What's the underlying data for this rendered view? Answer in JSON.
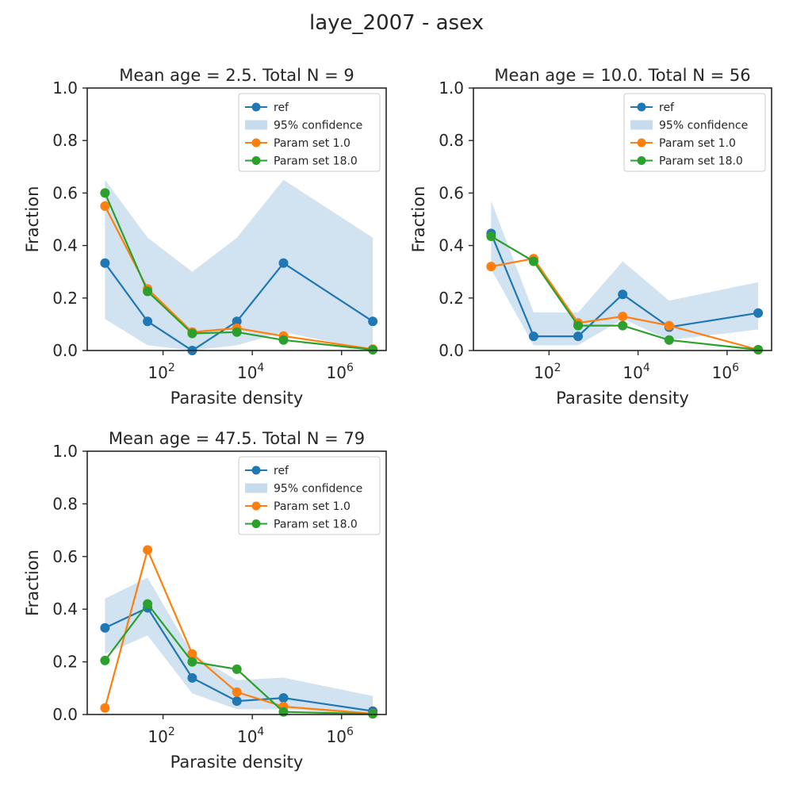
{
  "figure_title": "laye_2007 - asex",
  "colors": {
    "ref": "#1f77b4",
    "confidence": "#c6dbec",
    "param1": "#ff7f0e",
    "param18": "#2ca02c",
    "axes": "#262626"
  },
  "chart_data": [
    {
      "type": "line",
      "title": "Mean age = 2.5.  Total N = 9",
      "xlabel": "Parasite density",
      "ylabel": "Fraction",
      "xscale": "log",
      "xlim": [
        2,
        10000000
      ],
      "ylim": [
        0,
        1
      ],
      "xticks": [
        100,
        10000,
        1000000
      ],
      "xtick_labels": [
        [
          "10",
          "2"
        ],
        [
          "10",
          "4"
        ],
        [
          "10",
          "6"
        ]
      ],
      "yticks": [
        0.0,
        0.2,
        0.4,
        0.6,
        0.8,
        1.0
      ],
      "ytick_labels": [
        "0.0",
        "0.2",
        "0.4",
        "0.6",
        "0.8",
        "1.0"
      ],
      "grid": false,
      "legend_position": "top-right",
      "x": [
        5,
        45,
        450,
        4500,
        50000,
        5000000
      ],
      "confidence_band": {
        "name": "95% confidence",
        "lower": [
          0.12,
          0.02,
          0.0,
          0.02,
          0.07,
          0.0
        ],
        "upper": [
          0.65,
          0.43,
          0.3,
          0.43,
          0.65,
          0.43
        ]
      },
      "series": [
        {
          "name": "ref",
          "values": [
            0.333,
            0.111,
            0.0,
            0.111,
            0.333,
            0.111
          ]
        },
        {
          "name": "Param set 1.0",
          "values": [
            0.55,
            0.235,
            0.07,
            0.085,
            0.055,
            0.005
          ]
        },
        {
          "name": "Param set 18.0",
          "values": [
            0.6,
            0.225,
            0.065,
            0.07,
            0.04,
            0.003
          ]
        }
      ]
    },
    {
      "type": "line",
      "title": "Mean age = 10.0.  Total N = 56",
      "xlabel": "Parasite density",
      "ylabel": "Fraction",
      "xscale": "log",
      "xlim": [
        2,
        10000000
      ],
      "ylim": [
        0,
        1
      ],
      "xticks": [
        100,
        10000,
        1000000
      ],
      "xtick_labels": [
        [
          "10",
          "2"
        ],
        [
          "10",
          "4"
        ],
        [
          "10",
          "6"
        ]
      ],
      "yticks": [
        0.0,
        0.2,
        0.4,
        0.6,
        0.8,
        1.0
      ],
      "ytick_labels": [
        "0.0",
        "0.2",
        "0.4",
        "0.6",
        "0.8",
        "1.0"
      ],
      "grid": false,
      "legend_position": "top-right",
      "x": [
        5,
        45,
        450,
        4500,
        50000,
        5000000
      ],
      "confidence_band": {
        "name": "95% confidence",
        "lower": [
          0.31,
          0.02,
          0.02,
          0.12,
          0.04,
          0.08
        ],
        "upper": [
          0.57,
          0.145,
          0.145,
          0.34,
          0.19,
          0.26
        ]
      },
      "series": [
        {
          "name": "ref",
          "values": [
            0.446,
            0.054,
            0.054,
            0.214,
            0.089,
            0.143
          ]
        },
        {
          "name": "Param set 1.0",
          "values": [
            0.32,
            0.35,
            0.105,
            0.13,
            0.095,
            0.003
          ]
        },
        {
          "name": "Param set 18.0",
          "values": [
            0.435,
            0.34,
            0.095,
            0.095,
            0.04,
            0.003
          ]
        }
      ]
    },
    {
      "type": "line",
      "title": "Mean age = 47.5.  Total N = 79",
      "xlabel": "Parasite density",
      "ylabel": "Fraction",
      "xscale": "log",
      "xlim": [
        2,
        10000000
      ],
      "ylim": [
        0,
        1
      ],
      "xticks": [
        100,
        10000,
        1000000
      ],
      "xtick_labels": [
        [
          "10",
          "2"
        ],
        [
          "10",
          "4"
        ],
        [
          "10",
          "6"
        ]
      ],
      "yticks": [
        0.0,
        0.2,
        0.4,
        0.6,
        0.8,
        1.0
      ],
      "ytick_labels": [
        "0.0",
        "0.2",
        "0.4",
        "0.6",
        "0.8",
        "1.0"
      ],
      "grid": false,
      "legend_position": "top-right",
      "x": [
        5,
        45,
        450,
        4500,
        50000,
        5000000
      ],
      "confidence_band": {
        "name": "95% confidence",
        "lower": [
          0.23,
          0.3,
          0.08,
          0.02,
          0.02,
          0.0
        ],
        "upper": [
          0.44,
          0.52,
          0.23,
          0.13,
          0.14,
          0.07
        ]
      },
      "series": [
        {
          "name": "ref",
          "values": [
            0.329,
            0.405,
            0.139,
            0.051,
            0.063,
            0.013
          ]
        },
        {
          "name": "Param set 1.0",
          "values": [
            0.025,
            0.625,
            0.23,
            0.085,
            0.03,
            0.003
          ]
        },
        {
          "name": "Param set 18.0",
          "values": [
            0.205,
            0.42,
            0.2,
            0.172,
            0.01,
            0.002
          ]
        }
      ]
    }
  ]
}
